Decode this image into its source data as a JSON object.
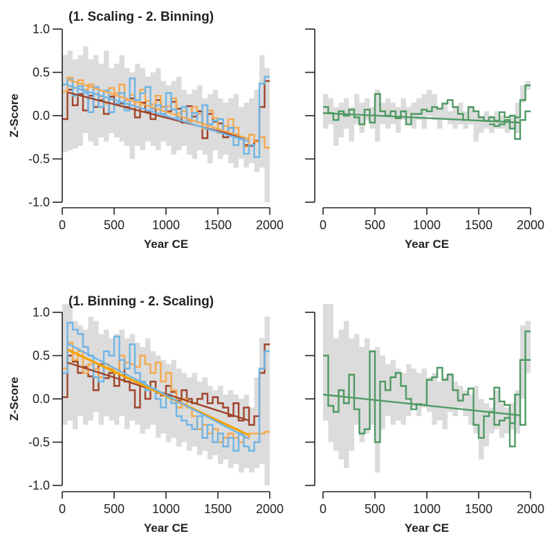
{
  "colors": {
    "band": "#dcdcdc",
    "brown": "#a0432a",
    "orange": "#f5a94e",
    "blue": "#6fb5e6",
    "green": "#4e9a63",
    "trend_orange": "#f4a300",
    "axis": "#222222"
  },
  "axis_text": {
    "xlabel": "Year CE",
    "ylabel": "Z-Score",
    "x_ticks": [
      "0",
      "500",
      "1000",
      "1500",
      "2000"
    ],
    "y_ticks": [
      "1.0",
      "0.5",
      "0.0",
      "-0.5",
      "-1.0"
    ]
  },
  "chart_data": [
    {
      "type": "line",
      "title": "(1. Scaling - 2. Binning)",
      "xlabel": "Year CE",
      "ylabel": "Z-Score",
      "xlim": [
        0,
        2000
      ],
      "ylim": [
        -1.0,
        1.0
      ],
      "x_ticks": [
        0,
        500,
        1000,
        1500,
        2000
      ],
      "y_ticks": [
        1.0,
        0.5,
        0.0,
        -0.5,
        -1.0
      ],
      "step_width": 50,
      "band": {
        "lower": [
          -0.42,
          -0.4,
          -0.38,
          -0.35,
          -0.2,
          -0.3,
          -0.35,
          -0.25,
          -0.3,
          -0.2,
          -0.25,
          -0.3,
          -0.35,
          -0.5,
          -0.35,
          -0.4,
          -0.3,
          -0.35,
          -0.4,
          -0.3,
          -0.35,
          -0.45,
          -0.4,
          -0.35,
          -0.45,
          -0.5,
          -0.4,
          -0.45,
          -0.55,
          -0.4,
          -0.5,
          -0.45,
          -0.55,
          -0.6,
          -0.5,
          -0.6,
          -0.55,
          -0.65,
          -0.6,
          -1.0
        ],
        "upper": [
          0.7,
          0.75,
          0.65,
          0.7,
          0.8,
          0.65,
          0.7,
          0.6,
          0.75,
          0.55,
          0.6,
          0.7,
          0.55,
          0.5,
          0.6,
          0.55,
          0.45,
          0.5,
          0.55,
          0.4,
          0.35,
          0.4,
          0.45,
          0.3,
          0.25,
          0.3,
          0.35,
          0.2,
          0.25,
          0.3,
          0.2,
          0.15,
          0.2,
          0.25,
          0.1,
          0.15,
          0.2,
          0.3,
          0.7,
          0.55
        ]
      },
      "series": [
        {
          "color": "brown",
          "values": [
            -0.04,
            0.3,
            0.12,
            0.25,
            0.06,
            0.23,
            0.1,
            0.18,
            0.02,
            0.22,
            0.13,
            0.14,
            0.1,
            0.2,
            -0.02,
            0.15,
            0.04,
            -0.04,
            0.18,
            0.1,
            0.05,
            0.16,
            0.08,
            -0.08,
            0.11,
            -0.01,
            0.05,
            -0.26,
            0.02,
            -0.07,
            -0.09,
            -0.25,
            -0.14,
            -0.22,
            -0.25,
            -0.34,
            -0.35,
            -0.29,
            0.1,
            0.4
          ]
        },
        {
          "color": "orange",
          "values": [
            0.28,
            0.44,
            0.32,
            0.41,
            0.3,
            0.36,
            0.25,
            0.22,
            0.14,
            0.32,
            0.26,
            0.36,
            0.18,
            0.24,
            0.1,
            0.3,
            0.17,
            0.13,
            0.23,
            0.1,
            0.11,
            0.2,
            0.03,
            0.05,
            -0.07,
            0.1,
            0.02,
            -0.15,
            0.06,
            -0.03,
            -0.2,
            -0.12,
            -0.04,
            -0.14,
            -0.25,
            -0.36,
            -0.22,
            -0.3,
            -0.25,
            -0.37
          ]
        },
        {
          "color": "blue",
          "values": [
            0.36,
            0.42,
            0.23,
            0.34,
            0.26,
            0.04,
            0.33,
            0.1,
            0.29,
            0.04,
            0.14,
            0.26,
            0.06,
            0.43,
            0.18,
            0.26,
            0.33,
            0.08,
            0.12,
            0.02,
            0.26,
            0.07,
            -0.02,
            0.1,
            -0.05,
            0.03,
            -0.08,
            0.12,
            -0.1,
            -0.06,
            -0.04,
            -0.21,
            -0.14,
            -0.34,
            -0.25,
            -0.44,
            -0.34,
            -0.48,
            0.37,
            0.45
          ]
        }
      ],
      "trends": [
        {
          "color": "brown",
          "x": [
            50,
            1800
          ],
          "y": [
            0.27,
            -0.27
          ]
        },
        {
          "color": "orange",
          "x": [
            50,
            1800
          ],
          "y": [
            0.42,
            -0.27
          ]
        },
        {
          "color": "blue",
          "x": [
            50,
            1800
          ],
          "y": [
            0.35,
            -0.3
          ]
        }
      ]
    },
    {
      "type": "line",
      "title": "",
      "xlabel": "Year CE",
      "ylabel": "",
      "xlim": [
        0,
        2000
      ],
      "ylim": [
        -1.0,
        1.0
      ],
      "x_ticks": [
        0,
        500,
        1000,
        1500,
        2000
      ],
      "y_ticks": [],
      "step_width": 50,
      "band": {
        "lower": [
          -0.15,
          -0.1,
          -0.35,
          -0.25,
          -0.15,
          -0.3,
          -0.1,
          -0.2,
          -0.05,
          -0.15,
          -0.3,
          -0.1,
          -0.15,
          -0.1,
          -0.2,
          -0.05,
          -0.1,
          -0.15,
          -0.05,
          -0.15,
          0.0,
          -0.05,
          -0.15,
          -0.05,
          -0.1,
          -0.15,
          -0.1,
          -0.15,
          -0.1,
          -0.3,
          -0.2,
          -0.15,
          -0.2,
          -0.15,
          -0.15,
          -0.2,
          -0.15,
          -0.2,
          0.15,
          0.3
        ],
        "upper": [
          0.25,
          0.2,
          0.1,
          0.15,
          0.2,
          0.1,
          0.25,
          0.15,
          0.2,
          0.1,
          0.3,
          0.15,
          0.2,
          0.15,
          0.1,
          0.2,
          0.1,
          0.15,
          0.2,
          0.25,
          0.3,
          0.25,
          0.1,
          0.15,
          0.05,
          0.1,
          0.15,
          0.05,
          0.1,
          0.05,
          0.0,
          0.05,
          0.0,
          0.05,
          0.0,
          -0.05,
          0.0,
          0.15,
          0.35,
          0.4
        ]
      },
      "series": [
        {
          "color": "green",
          "values": [
            0.1,
            0.03,
            -0.05,
            0.05,
            0.0,
            0.07,
            -0.02,
            -0.1,
            0.07,
            -0.08,
            0.25,
            0.05,
            0.0,
            0.05,
            -0.03,
            0.05,
            -0.1,
            0.02,
            0.02,
            0.07,
            0.05,
            0.1,
            0.08,
            0.14,
            0.18,
            0.1,
            0.02,
            -0.05,
            0.1,
            0.05,
            -0.02,
            -0.06,
            -0.02,
            -0.06,
            0.04,
            -0.02,
            0.0,
            -0.27,
            -0.05,
            0.05
          ]
        },
        {
          "color": "green",
          "values": [
            -0.1,
            -0.12,
            -0.1,
            -0.05,
            -0.15,
            -0.02,
            0.18,
            0.35
          ]
        }
      ],
      "trends": [
        {
          "color": "green",
          "x": [
            0,
            1900
          ],
          "y": [
            0.03,
            -0.08
          ]
        }
      ]
    },
    {
      "type": "line",
      "title": "(1. Binning - 2. Scaling)",
      "xlabel": "Year CE",
      "ylabel": "Z-Score",
      "xlim": [
        0,
        2000
      ],
      "ylim": [
        -1.0,
        1.0
      ],
      "x_ticks": [
        0,
        500,
        1000,
        1500,
        2000
      ],
      "y_ticks": [
        1.0,
        0.5,
        0.0,
        -0.5,
        -1.0
      ],
      "step_width": 50,
      "band": {
        "lower": [
          -0.3,
          -0.25,
          -0.35,
          -0.2,
          -0.3,
          -0.25,
          -0.15,
          -0.3,
          -0.2,
          -0.25,
          -0.3,
          -0.2,
          -0.35,
          -0.25,
          -0.3,
          -0.4,
          -0.35,
          -0.3,
          -0.45,
          -0.4,
          -0.5,
          -0.45,
          -0.55,
          -0.5,
          -0.6,
          -0.55,
          -0.65,
          -0.6,
          -0.7,
          -0.65,
          -0.75,
          -0.7,
          -0.8,
          -0.75,
          -0.85,
          -0.8,
          -0.85,
          -0.8,
          -0.75,
          -1.0
        ],
        "upper": [
          1.45,
          1.1,
          0.9,
          0.85,
          0.8,
          0.95,
          0.9,
          0.75,
          0.8,
          0.7,
          0.75,
          0.8,
          0.7,
          0.75,
          0.65,
          0.6,
          0.7,
          0.55,
          0.5,
          0.45,
          0.4,
          0.45,
          0.35,
          0.3,
          0.25,
          0.3,
          0.2,
          0.25,
          0.15,
          0.1,
          0.15,
          0.05,
          0.1,
          0.05,
          0.0,
          0.05,
          -0.1,
          0.25,
          0.7,
          0.95
        ]
      },
      "series": [
        {
          "color": "brown",
          "values": [
            0.02,
            0.5,
            0.43,
            0.3,
            0.37,
            0.26,
            0.1,
            0.4,
            0.24,
            0.3,
            0.15,
            0.45,
            0.2,
            0.1,
            -0.1,
            0.16,
            0.0,
            0.2,
            0.07,
            0.04,
            0.15,
            0.08,
            -0.02,
            0.1,
            0.0,
            -0.05,
            0.0,
            0.06,
            -0.05,
            0.02,
            -0.05,
            -0.1,
            -0.2,
            -0.05,
            -0.25,
            -0.1,
            -0.3,
            -0.2,
            0.3,
            0.63
          ]
        },
        {
          "color": "orange",
          "values": [
            0.35,
            0.65,
            0.45,
            0.55,
            0.3,
            0.4,
            0.35,
            0.25,
            0.4,
            0.35,
            0.3,
            0.5,
            0.42,
            0.4,
            0.37,
            0.5,
            0.4,
            0.3,
            0.42,
            0.2,
            0.3,
            0.1,
            -0.1,
            0.0,
            -0.1,
            -0.2,
            -0.35,
            -0.3,
            -0.4,
            -0.35,
            -0.5,
            -0.45,
            -0.4,
            -0.45,
            -0.5,
            -0.45,
            -0.4,
            -0.4,
            -0.4,
            -0.38
          ]
        },
        {
          "color": "blue",
          "values": [
            0.3,
            0.88,
            0.8,
            0.75,
            0.6,
            0.5,
            0.25,
            0.2,
            0.55,
            0.5,
            0.72,
            0.45,
            0.35,
            0.63,
            0.3,
            0.2,
            0.1,
            0.12,
            0.0,
            -0.1,
            0.05,
            -0.05,
            -0.2,
            -0.25,
            -0.3,
            -0.35,
            -0.2,
            -0.45,
            -0.3,
            -0.5,
            -0.4,
            -0.55,
            -0.45,
            -0.6,
            -0.4,
            -0.55,
            -0.6,
            -0.5,
            0.35,
            0.55
          ]
        }
      ],
      "trends": [
        {
          "color": "brown",
          "x": [
            50,
            1800
          ],
          "y": [
            0.42,
            -0.25
          ]
        },
        {
          "color": "trend_orange",
          "x": [
            50,
            1800
          ],
          "y": [
            0.57,
            -0.42
          ]
        },
        {
          "color": "blue",
          "x": [
            50,
            1800
          ],
          "y": [
            0.64,
            -0.46
          ]
        }
      ]
    },
    {
      "type": "line",
      "title": "",
      "xlabel": "Year CE",
      "ylabel": "",
      "xlim": [
        0,
        2000
      ],
      "ylim": [
        -1.0,
        1.0
      ],
      "x_ticks": [
        0,
        500,
        1000,
        1500,
        2000
      ],
      "y_ticks": [],
      "step_width": 50,
      "band": {
        "lower": [
          -0.25,
          -0.5,
          -0.6,
          -0.7,
          -0.8,
          -0.6,
          -0.3,
          -0.5,
          -0.4,
          -0.3,
          -0.85,
          -0.35,
          -0.2,
          -0.3,
          -0.25,
          -0.3,
          -0.2,
          -0.1,
          -0.2,
          -0.1,
          -0.15,
          -0.3,
          -0.25,
          -0.35,
          -0.15,
          -0.2,
          -0.1,
          -0.2,
          -0.3,
          -0.4,
          -0.7,
          -0.55,
          -0.4,
          -0.35,
          -0.45,
          -0.4,
          -0.35,
          -0.4,
          0.0,
          0.3
        ],
        "upper": [
          1.25,
          1.2,
          0.7,
          0.8,
          0.9,
          0.7,
          0.75,
          0.6,
          0.7,
          0.55,
          0.6,
          0.5,
          0.4,
          0.45,
          0.35,
          0.3,
          0.4,
          0.35,
          0.3,
          0.35,
          0.25,
          0.3,
          0.2,
          0.25,
          0.3,
          0.2,
          0.15,
          0.1,
          0.05,
          0.15,
          0.0,
          -0.05,
          -0.1,
          0.1,
          -0.05,
          -0.1,
          -0.05,
          0.1,
          0.85,
          0.9
        ]
      },
      "series": [
        {
          "color": "green",
          "values": [
            0.5,
            -0.08,
            -0.15,
            0.1,
            -0.05,
            0.28,
            -0.12,
            -0.4,
            -0.35,
            0.55,
            -0.5,
            0.2,
            0.1,
            0.25,
            0.3,
            0.15,
            0.0,
            -0.12,
            -0.06,
            -0.07,
            0.22,
            0.25,
            0.36,
            0.22,
            0.28,
            0.1,
            -0.02,
            0.05,
            0.12,
            -0.3,
            -0.45,
            -0.2,
            -0.15,
            0.13,
            -0.03,
            -0.07,
            -0.55,
            0.05,
            -0.3,
            0.45
          ]
        },
        {
          "color": "green",
          "values": [
            0.0,
            -0.3,
            -0.25,
            -0.22,
            -0.28,
            0.05,
            0.45,
            0.78
          ]
        }
      ],
      "trends": [
        {
          "color": "green",
          "x": [
            0,
            1900
          ],
          "y": [
            0.05,
            -0.19
          ]
        }
      ]
    }
  ]
}
